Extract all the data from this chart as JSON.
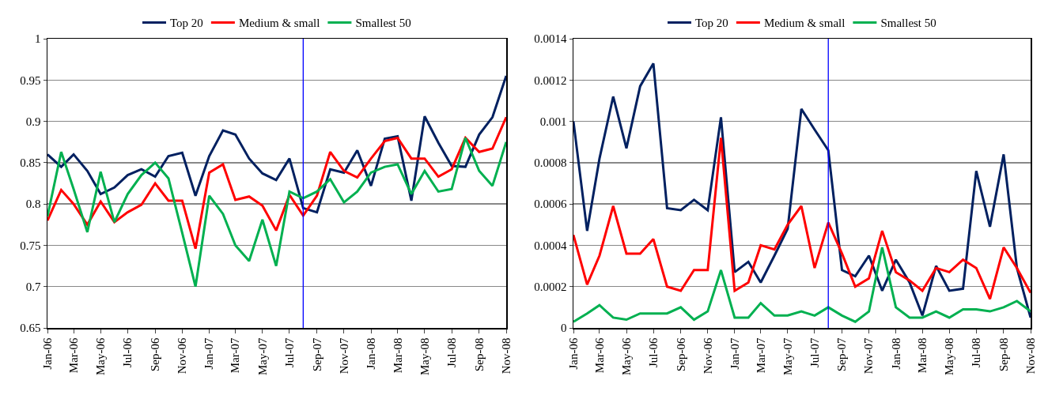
{
  "chart_data": [
    {
      "type": "line",
      "x": [
        "2006-01",
        "2006-02",
        "2006-03",
        "2006-04",
        "2006-05",
        "2006-06",
        "2006-07",
        "2006-08",
        "2006-09",
        "2006-10",
        "2006-11",
        "2006-12",
        "2007-01",
        "2007-02",
        "2007-03",
        "2007-04",
        "2007-05",
        "2007-06",
        "2007-07",
        "2007-08",
        "2007-09",
        "2007-10",
        "2007-11",
        "2007-12",
        "2008-01",
        "2008-02",
        "2008-03",
        "2008-04",
        "2008-05",
        "2008-06",
        "2008-07",
        "2008-08",
        "2008-09",
        "2008-10",
        "2008-11"
      ],
      "series": [
        {
          "name": "Top 20",
          "color": "#002060",
          "values": [
            0.86,
            0.845,
            0.86,
            0.84,
            0.812,
            0.82,
            0.835,
            0.842,
            0.833,
            0.858,
            0.862,
            0.81,
            0.858,
            0.889,
            0.884,
            0.855,
            0.837,
            0.829,
            0.855,
            0.795,
            0.79,
            0.842,
            0.838,
            0.865,
            0.822,
            0.879,
            0.882,
            0.804,
            0.906,
            0.874,
            0.846,
            0.845,
            0.884,
            0.905,
            0.955
          ]
        },
        {
          "name": "Medium & small",
          "color": "#ff0000",
          "values": [
            0.78,
            0.817,
            0.8,
            0.775,
            0.803,
            0.778,
            0.79,
            0.799,
            0.825,
            0.804,
            0.804,
            0.746,
            0.838,
            0.848,
            0.805,
            0.809,
            0.798,
            0.768,
            0.811,
            0.786,
            0.81,
            0.863,
            0.84,
            0.832,
            0.855,
            0.876,
            0.88,
            0.855,
            0.855,
            0.833,
            0.842,
            0.88,
            0.863,
            0.867,
            0.905
          ]
        },
        {
          "name": "Smallest 50",
          "color": "#00b050",
          "values": [
            0.785,
            0.863,
            0.818,
            0.766,
            0.839,
            0.778,
            0.812,
            0.835,
            0.85,
            0.831,
            0.765,
            0.7,
            0.81,
            0.788,
            0.75,
            0.731,
            0.781,
            0.725,
            0.815,
            0.807,
            0.815,
            0.83,
            0.802,
            0.815,
            0.838,
            0.845,
            0.848,
            0.812,
            0.84,
            0.815,
            0.818,
            0.88,
            0.84,
            0.822,
            0.875
          ]
        }
      ],
      "xlim": [
        "2006-01",
        "2008-11"
      ],
      "xticks": [
        {
          "value": "2006-01",
          "label": "Jan-06"
        },
        {
          "value": "2006-03",
          "label": "Mar-06"
        },
        {
          "value": "2006-05",
          "label": "May-06"
        },
        {
          "value": "2006-07",
          "label": "Jul-06"
        },
        {
          "value": "2006-09",
          "label": "Sep-06"
        },
        {
          "value": "2006-11",
          "label": "Nov-06"
        },
        {
          "value": "2007-01",
          "label": "Jan-07"
        },
        {
          "value": "2007-03",
          "label": "Mar-07"
        },
        {
          "value": "2007-05",
          "label": "May-07"
        },
        {
          "value": "2007-07",
          "label": "Jul-07"
        },
        {
          "value": "2007-09",
          "label": "Sep-07"
        },
        {
          "value": "2007-11",
          "label": "Nov-07"
        },
        {
          "value": "2008-01",
          "label": "Jan-08"
        },
        {
          "value": "2008-03",
          "label": "Mar-08"
        },
        {
          "value": "2008-05",
          "label": "May-08"
        },
        {
          "value": "2008-07",
          "label": "Jul-08"
        },
        {
          "value": "2008-09",
          "label": "Sep-08"
        },
        {
          "value": "2008-11",
          "label": "Nov-08"
        }
      ],
      "ylim": [
        0.65,
        1
      ],
      "yticks": [
        0.65,
        0.7,
        0.75,
        0.8,
        0.85,
        0.9,
        0.95,
        1
      ],
      "grid": "y",
      "legend": "top",
      "ref_lines": [
        {
          "axis": "x",
          "value": "2007-08",
          "color": "#0000ff"
        }
      ]
    },
    {
      "type": "line",
      "x": [
        "2006-01",
        "2006-02",
        "2006-03",
        "2006-04",
        "2006-05",
        "2006-06",
        "2006-07",
        "2006-08",
        "2006-09",
        "2006-10",
        "2006-11",
        "2006-12",
        "2007-01",
        "2007-02",
        "2007-03",
        "2007-04",
        "2007-05",
        "2007-06",
        "2007-07",
        "2007-08",
        "2007-09",
        "2007-10",
        "2007-11",
        "2007-12",
        "2008-01",
        "2008-02",
        "2008-03",
        "2008-04",
        "2008-05",
        "2008-06",
        "2008-07",
        "2008-08",
        "2008-09",
        "2008-10",
        "2008-11"
      ],
      "series": [
        {
          "name": "Top 20",
          "color": "#002060",
          "values": [
            0.001,
            0.00047,
            0.00082,
            0.00112,
            0.00087,
            0.00117,
            0.00128,
            0.00058,
            0.00057,
            0.00062,
            0.00057,
            0.00102,
            0.00027,
            0.00032,
            0.00022,
            0.00035,
            0.00048,
            0.00106,
            0.00096,
            0.00086,
            0.00028,
            0.00025,
            0.00035,
            0.00018,
            0.00033,
            0.00022,
            6e-05,
            0.0003,
            0.00018,
            0.00019,
            0.00076,
            0.00049,
            0.00084,
            0.00029,
            5e-05
          ]
        },
        {
          "name": "Medium & small",
          "color": "#ff0000",
          "values": [
            0.00045,
            0.00021,
            0.00035,
            0.00059,
            0.00036,
            0.00036,
            0.00043,
            0.0002,
            0.00018,
            0.00028,
            0.00028,
            0.00092,
            0.00018,
            0.00022,
            0.0004,
            0.00038,
            0.0005,
            0.00059,
            0.00029,
            0.00051,
            0.00036,
            0.0002,
            0.00024,
            0.00047,
            0.00027,
            0.00023,
            0.00018,
            0.00029,
            0.00027,
            0.00033,
            0.00029,
            0.00014,
            0.00039,
            0.00029,
            0.00017
          ]
        },
        {
          "name": "Smallest 50",
          "color": "#00b050",
          "values": [
            3e-05,
            7e-05,
            0.00011,
            5e-05,
            4e-05,
            7e-05,
            7e-05,
            7e-05,
            0.0001,
            4e-05,
            8e-05,
            0.00028,
            5e-05,
            5e-05,
            0.00012,
            6e-05,
            6e-05,
            8e-05,
            6e-05,
            0.0001,
            6e-05,
            3e-05,
            8e-05,
            0.00039,
            0.0001,
            5e-05,
            5e-05,
            8e-05,
            5e-05,
            9e-05,
            9e-05,
            8e-05,
            0.0001,
            0.00013,
            8e-05
          ]
        }
      ],
      "xlim": [
        "2006-01",
        "2008-11"
      ],
      "xticks": [
        {
          "value": "2006-01",
          "label": "Jan-06"
        },
        {
          "value": "2006-03",
          "label": "Mar-06"
        },
        {
          "value": "2006-05",
          "label": "May-06"
        },
        {
          "value": "2006-07",
          "label": "Jul-06"
        },
        {
          "value": "2006-09",
          "label": "Sep-06"
        },
        {
          "value": "2006-11",
          "label": "Nov-06"
        },
        {
          "value": "2007-01",
          "label": "Jan-07"
        },
        {
          "value": "2007-03",
          "label": "Mar-07"
        },
        {
          "value": "2007-05",
          "label": "May-07"
        },
        {
          "value": "2007-07",
          "label": "Jul-07"
        },
        {
          "value": "2007-09",
          "label": "Sep-07"
        },
        {
          "value": "2007-11",
          "label": "Nov-07"
        },
        {
          "value": "2008-01",
          "label": "Jan-08"
        },
        {
          "value": "2008-03",
          "label": "Mar-08"
        },
        {
          "value": "2008-05",
          "label": "May-08"
        },
        {
          "value": "2008-07",
          "label": "Jul-08"
        },
        {
          "value": "2008-09",
          "label": "Sep-08"
        },
        {
          "value": "2008-11",
          "label": "Nov-08"
        }
      ],
      "ylim": [
        0,
        0.0014
      ],
      "yticks": [
        0,
        0.0002,
        0.0004,
        0.0006,
        0.0008,
        0.001,
        0.0012,
        0.0014
      ],
      "grid": "y",
      "legend": "top",
      "ref_lines": [
        {
          "axis": "x",
          "value": "2007-08",
          "color": "#0000ff"
        }
      ]
    }
  ]
}
